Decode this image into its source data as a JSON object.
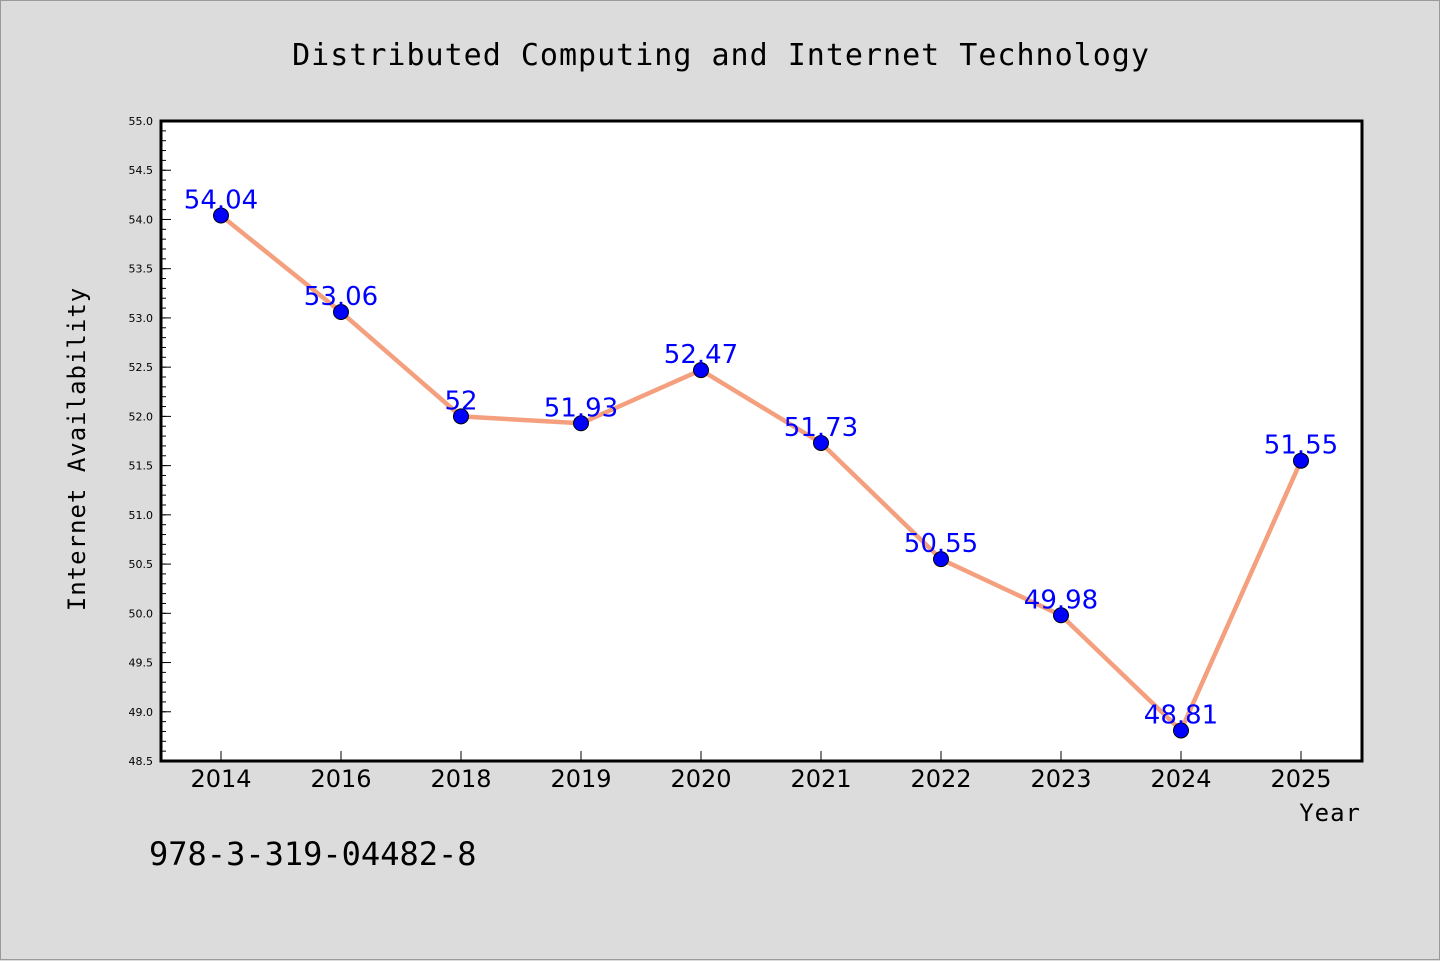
{
  "chart_data": {
    "type": "line",
    "title": "Distributed Computing and Internet Technology",
    "xlabel": "Year",
    "ylabel": "Internet Availability",
    "categories": [
      "2014",
      "2016",
      "2018",
      "2019",
      "2020",
      "2021",
      "2022",
      "2023",
      "2024",
      "2025"
    ],
    "series": [
      {
        "values": [
          54.04,
          53.06,
          52,
          51.93,
          52.47,
          51.73,
          50.55,
          49.98,
          48.81,
          51.55
        ],
        "data_labels": [
          "54.04",
          "53.06",
          "52",
          "51.93",
          "52.47",
          "51.73",
          "50.55",
          "49.98",
          "48.81",
          "51.55"
        ]
      }
    ],
    "ylim": [
      48.5,
      55.0
    ],
    "yticks": [
      "48.5",
      "49.0",
      "49.5",
      "50.0",
      "50.5",
      "51.0",
      "51.5",
      "52.0",
      "52.5",
      "53.0",
      "53.5",
      "54.0",
      "54.5",
      "55.0"
    ],
    "grid": false,
    "line_color": "#f4a07f",
    "marker_color": "#0000ff",
    "label_color": "#0000ff",
    "background_color": "#dcdcdc",
    "plot_background_color": "#ffffff"
  },
  "footer": {
    "isbn": "978-3-319-04482-8"
  }
}
